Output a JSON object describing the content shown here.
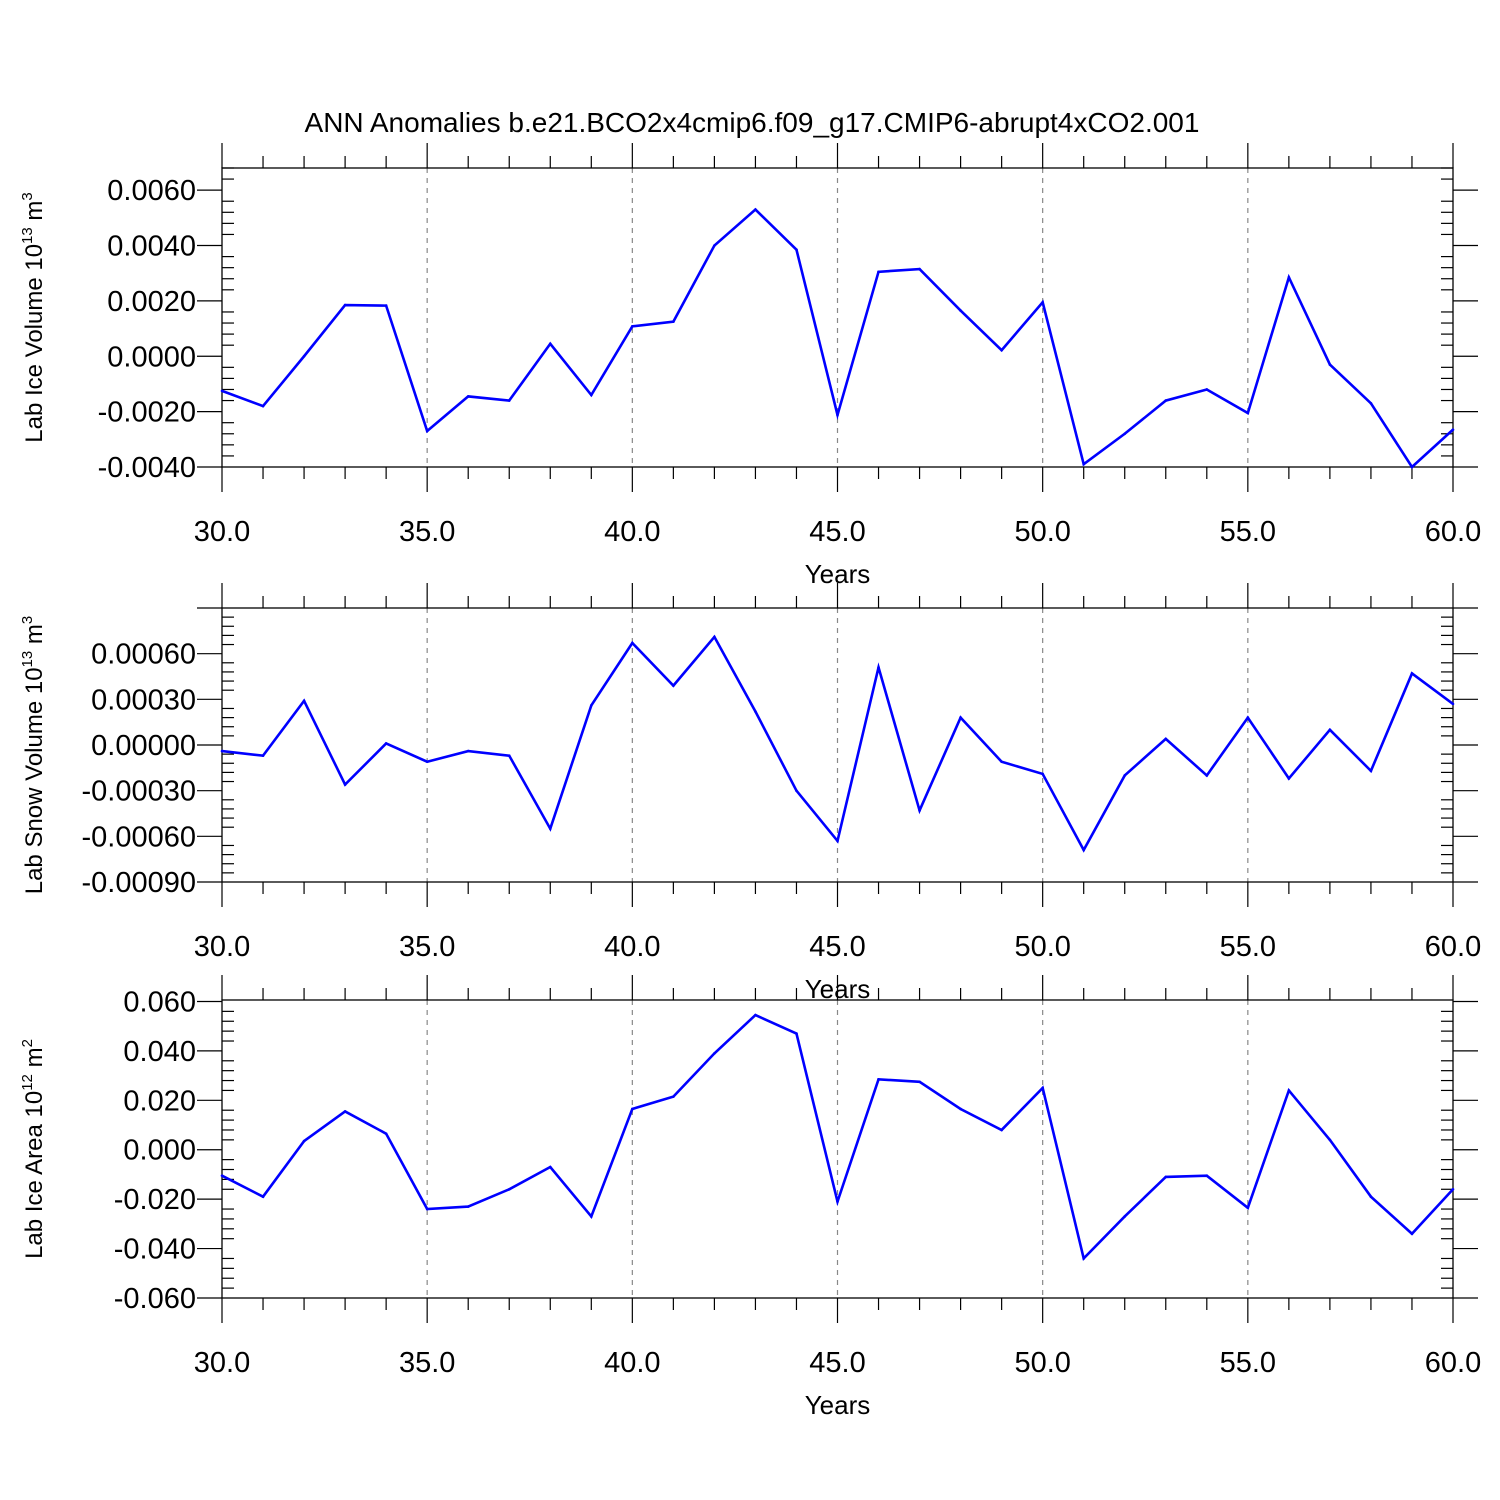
{
  "title": "ANN Anomalies b.e21.BCO2x4cmip6.f09_g17.CMIP6-abrupt4xCO2.001",
  "colors": {
    "series": "#0000ff",
    "axis": "#000000",
    "grid": "#888888"
  },
  "chart_data": [
    {
      "type": "line",
      "ylabel": {
        "text": "Lab Ice Volume 10",
        "sup1": "13",
        "unit": " m",
        "sup2": "3"
      },
      "xlabel": "Years",
      "xlim": [
        30,
        60
      ],
      "ylim": [
        -0.004,
        0.006
      ],
      "ymax_axis": 0.0068,
      "xticks": [
        30,
        35,
        40,
        45,
        50,
        55,
        60
      ],
      "xtick_labels": [
        "30.0",
        "35.0",
        "40.0",
        "45.0",
        "50.0",
        "55.0",
        "60.0"
      ],
      "yticks": [
        -0.004,
        -0.002,
        0,
        0.002,
        0.004,
        0.006
      ],
      "ytick_labels": [
        "-0.0040",
        "-0.0020",
        "0.0000",
        "0.0020",
        "0.0040",
        "0.0060"
      ],
      "grid": "vertical dashed",
      "x": [
        30,
        31,
        32,
        33,
        34,
        35,
        36,
        37,
        38,
        39,
        40,
        41,
        42,
        43,
        44,
        45,
        46,
        47,
        48,
        49,
        50,
        51,
        52,
        53,
        54,
        55,
        56,
        57,
        58,
        59,
        60
      ],
      "values": [
        -0.00125,
        -0.0018,
        0.0,
        0.00185,
        0.00183,
        -0.0027,
        -0.00145,
        -0.0016,
        0.00045,
        -0.0014,
        0.00108,
        0.00125,
        0.004,
        0.0053,
        0.00385,
        -0.00212,
        0.00305,
        0.00315,
        0.00165,
        0.00022,
        0.00195,
        -0.0039,
        -0.0028,
        -0.0016,
        -0.0012,
        -0.00205,
        0.00285,
        -0.0003,
        -0.0017,
        -0.004,
        -0.00265
      ]
    },
    {
      "type": "line",
      "ylabel": {
        "text": "Lab Snow Volume 10",
        "sup1": "13",
        "unit": " m",
        "sup2": "3"
      },
      "xlabel": "Years",
      "xlim": [
        30,
        60
      ],
      "ylim": [
        -0.0009,
        0.0009
      ],
      "xticks": [
        30,
        35,
        40,
        45,
        50,
        55,
        60
      ],
      "xtick_labels": [
        "30.0",
        "35.0",
        "40.0",
        "45.0",
        "50.0",
        "55.0",
        "60.0"
      ],
      "yticks": [
        -0.0009,
        -0.0006,
        -0.0003,
        0,
        0.0003,
        0.0006
      ],
      "ytick_labels": [
        "-0.00090",
        "-0.00060",
        "-0.00030",
        "0.00000",
        "0.00030",
        "0.00060"
      ],
      "grid": "vertical dashed",
      "x": [
        30,
        31,
        32,
        33,
        34,
        35,
        36,
        37,
        38,
        39,
        40,
        41,
        42,
        43,
        44,
        45,
        46,
        47,
        48,
        49,
        50,
        51,
        52,
        53,
        54,
        55,
        56,
        57,
        58,
        59,
        60
      ],
      "values": [
        -4e-05,
        -7e-05,
        0.00029,
        -0.00026,
        1e-05,
        -0.00011,
        -4e-05,
        -7e-05,
        -0.00055,
        0.00026,
        0.00067,
        0.00039,
        0.00071,
        0.00022,
        -0.0003,
        -0.00063,
        0.00051,
        -0.00043,
        0.00018,
        -0.00011,
        -0.00019,
        -0.00069,
        -0.0002,
        4e-05,
        -0.0002,
        0.00018,
        -0.00022,
        0.0001,
        -0.00017,
        0.00047,
        0.00027
      ]
    },
    {
      "type": "line",
      "ylabel": {
        "text": "Lab Ice Area 10",
        "sup1": "12",
        "unit": " m",
        "sup2": "2"
      },
      "xlabel": "Years",
      "xlim": [
        30,
        60
      ],
      "ylim": [
        -0.06,
        0.06
      ],
      "xticks": [
        30,
        35,
        40,
        45,
        50,
        55,
        60
      ],
      "xtick_labels": [
        "30.0",
        "35.0",
        "40.0",
        "45.0",
        "50.0",
        "55.0",
        "60.0"
      ],
      "yticks": [
        -0.06,
        -0.04,
        -0.02,
        0,
        0.02,
        0.04,
        0.06
      ],
      "ytick_labels": [
        "-0.060",
        "-0.040",
        "-0.020",
        "0.000",
        "0.020",
        "0.040",
        "0.060"
      ],
      "grid": "vertical dashed",
      "x": [
        30,
        31,
        32,
        33,
        34,
        35,
        36,
        37,
        38,
        39,
        40,
        41,
        42,
        43,
        44,
        45,
        46,
        47,
        48,
        49,
        50,
        51,
        52,
        53,
        54,
        55,
        56,
        57,
        58,
        59,
        60
      ],
      "values": [
        -0.0105,
        -0.019,
        0.0035,
        0.0155,
        0.0065,
        -0.024,
        -0.023,
        -0.016,
        -0.007,
        -0.027,
        0.0165,
        0.0215,
        0.039,
        0.0545,
        0.047,
        -0.021,
        0.0285,
        0.0275,
        0.0165,
        0.008,
        0.025,
        -0.044,
        -0.027,
        -0.011,
        -0.0105,
        -0.0235,
        0.024,
        0.004,
        -0.019,
        -0.034,
        -0.016
      ]
    }
  ]
}
